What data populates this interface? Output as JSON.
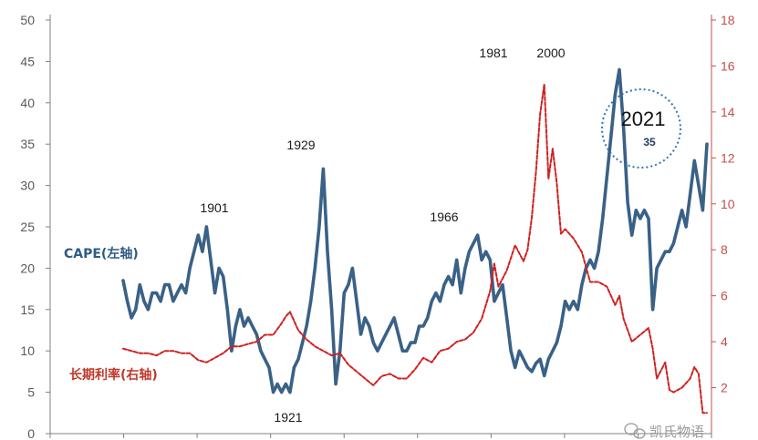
{
  "chart_data": {
    "type": "line",
    "title": "",
    "x_range": [
      1881,
      2021
    ],
    "y_left": {
      "range": [
        0,
        50
      ],
      "ticks": [
        "0",
        "5",
        "10",
        "15",
        "20",
        "25",
        "30",
        "35",
        "40",
        "45",
        "50"
      ]
    },
    "y_right": {
      "range": [
        0,
        18
      ],
      "ticks": [
        "2",
        "4",
        "6",
        "8",
        "10",
        "12",
        "14",
        "16",
        "18"
      ]
    },
    "grid": false,
    "series": [
      {
        "name": "CAPE(左轴)",
        "axis": "left",
        "color": "#3a6186",
        "x": [
          1881,
          1882,
          1883,
          1884,
          1885,
          1886,
          1887,
          1888,
          1889,
          1890,
          1891,
          1892,
          1893,
          1894,
          1895,
          1896,
          1897,
          1898,
          1899,
          1900,
          1901,
          1902,
          1903,
          1904,
          1905,
          1906,
          1907,
          1908,
          1909,
          1910,
          1911,
          1912,
          1913,
          1914,
          1915,
          1916,
          1917,
          1918,
          1919,
          1920,
          1921,
          1922,
          1923,
          1924,
          1925,
          1926,
          1927,
          1928,
          1929,
          1930,
          1931,
          1932,
          1933,
          1934,
          1935,
          1936,
          1937,
          1938,
          1939,
          1940,
          1941,
          1942,
          1943,
          1944,
          1945,
          1946,
          1947,
          1948,
          1949,
          1950,
          1951,
          1952,
          1953,
          1954,
          1955,
          1956,
          1957,
          1958,
          1959,
          1960,
          1961,
          1962,
          1963,
          1964,
          1965,
          1966,
          1967,
          1968,
          1969,
          1970,
          1971,
          1972,
          1973,
          1974,
          1975,
          1976,
          1977,
          1978,
          1979,
          1980,
          1981,
          1982,
          1983,
          1984,
          1985,
          1986,
          1987,
          1988,
          1989,
          1990,
          1991,
          1992,
          1993,
          1994,
          1995,
          1996,
          1997,
          1998,
          1999,
          2000,
          2001,
          2002,
          2003,
          2004,
          2005,
          2006,
          2007,
          2008,
          2009,
          2010,
          2011,
          2012,
          2013,
          2014,
          2015,
          2016,
          2017,
          2018,
          2019,
          2020,
          2021
        ],
        "values": [
          18.5,
          16,
          14,
          15,
          18,
          16,
          15,
          17,
          17,
          16,
          18,
          18,
          16,
          17,
          18,
          17,
          20,
          22,
          24,
          22,
          25,
          21,
          17,
          20,
          19,
          15,
          10,
          13,
          15,
          13,
          14,
          13,
          12,
          10,
          9,
          8,
          5,
          6,
          5,
          6,
          5,
          8,
          9,
          11,
          13,
          16,
          20,
          25,
          32,
          22,
          15,
          6,
          10,
          17,
          18,
          20,
          16,
          12,
          14,
          13,
          11,
          10,
          11,
          12,
          13,
          14,
          12,
          10,
          10,
          11,
          11,
          13,
          13,
          14,
          16,
          17,
          16,
          18,
          19,
          18,
          21,
          17,
          20,
          22,
          23,
          24,
          21,
          22,
          21,
          16,
          17,
          18,
          14,
          10,
          8,
          10,
          9,
          8,
          7.5,
          8.5,
          9,
          7,
          9,
          10,
          11,
          13,
          16,
          15,
          16,
          15,
          18,
          20,
          21,
          20,
          22,
          26,
          31,
          36,
          41,
          44,
          37,
          28,
          24,
          27,
          26,
          27,
          26,
          15,
          20,
          21,
          22,
          22,
          23,
          25,
          27,
          25,
          29,
          33,
          30,
          27,
          35
        ]
      },
      {
        "name": "长期利率(右轴)",
        "axis": "right",
        "color": "#d02020",
        "x": [
          1881,
          1883,
          1885,
          1887,
          1889,
          1891,
          1893,
          1895,
          1897,
          1899,
          1901,
          1903,
          1905,
          1907,
          1909,
          1911,
          1913,
          1915,
          1917,
          1919,
          1920,
          1921,
          1923,
          1925,
          1927,
          1929,
          1931,
          1933,
          1935,
          1937,
          1939,
          1941,
          1943,
          1945,
          1947,
          1949,
          1951,
          1953,
          1955,
          1957,
          1959,
          1961,
          1963,
          1965,
          1967,
          1969,
          1970,
          1971,
          1973,
          1975,
          1977,
          1978,
          1979,
          1980,
          1981,
          1982,
          1983,
          1984,
          1985,
          1986,
          1987,
          1989,
          1991,
          1993,
          1995,
          1997,
          1999,
          2000,
          2001,
          2003,
          2005,
          2007,
          2008,
          2009,
          2011,
          2012,
          2013,
          2015,
          2017,
          2018,
          2019,
          2020,
          2021
        ],
        "values": [
          3.7,
          3.6,
          3.5,
          3.5,
          3.4,
          3.6,
          3.6,
          3.5,
          3.5,
          3.2,
          3.1,
          3.3,
          3.5,
          3.8,
          3.8,
          3.9,
          4.0,
          4.3,
          4.3,
          4.8,
          5.1,
          5.3,
          4.5,
          4.1,
          3.8,
          3.6,
          3.4,
          3.5,
          3.0,
          2.7,
          2.4,
          2.1,
          2.5,
          2.6,
          2.4,
          2.4,
          2.8,
          3.3,
          3.1,
          3.6,
          3.7,
          4.0,
          4.1,
          4.4,
          5.0,
          6.2,
          7.4,
          6.4,
          7.1,
          8.2,
          7.5,
          8.0,
          9.4,
          11.4,
          13.9,
          15.2,
          11.1,
          12.4,
          10.9,
          8.7,
          8.9,
          8.5,
          7.9,
          6.6,
          6.6,
          6.4,
          5.6,
          6.0,
          5.0,
          4.0,
          4.3,
          4.6,
          3.7,
          2.4,
          3.1,
          1.9,
          1.8,
          2.0,
          2.4,
          2.9,
          2.6,
          0.9,
          0.9
        ]
      }
    ],
    "annotations": [
      {
        "text": "1901"
      },
      {
        "text": "1929"
      },
      {
        "text": "1921"
      },
      {
        "text": "1966"
      },
      {
        "text": "1981"
      },
      {
        "text": "2000"
      },
      {
        "text": "2021"
      },
      {
        "text": "35"
      }
    ],
    "legend": {
      "cape_label": "CAPE(左轴)",
      "rate_label": "长期利率(右轴)"
    }
  },
  "watermark": "凯氏物语"
}
